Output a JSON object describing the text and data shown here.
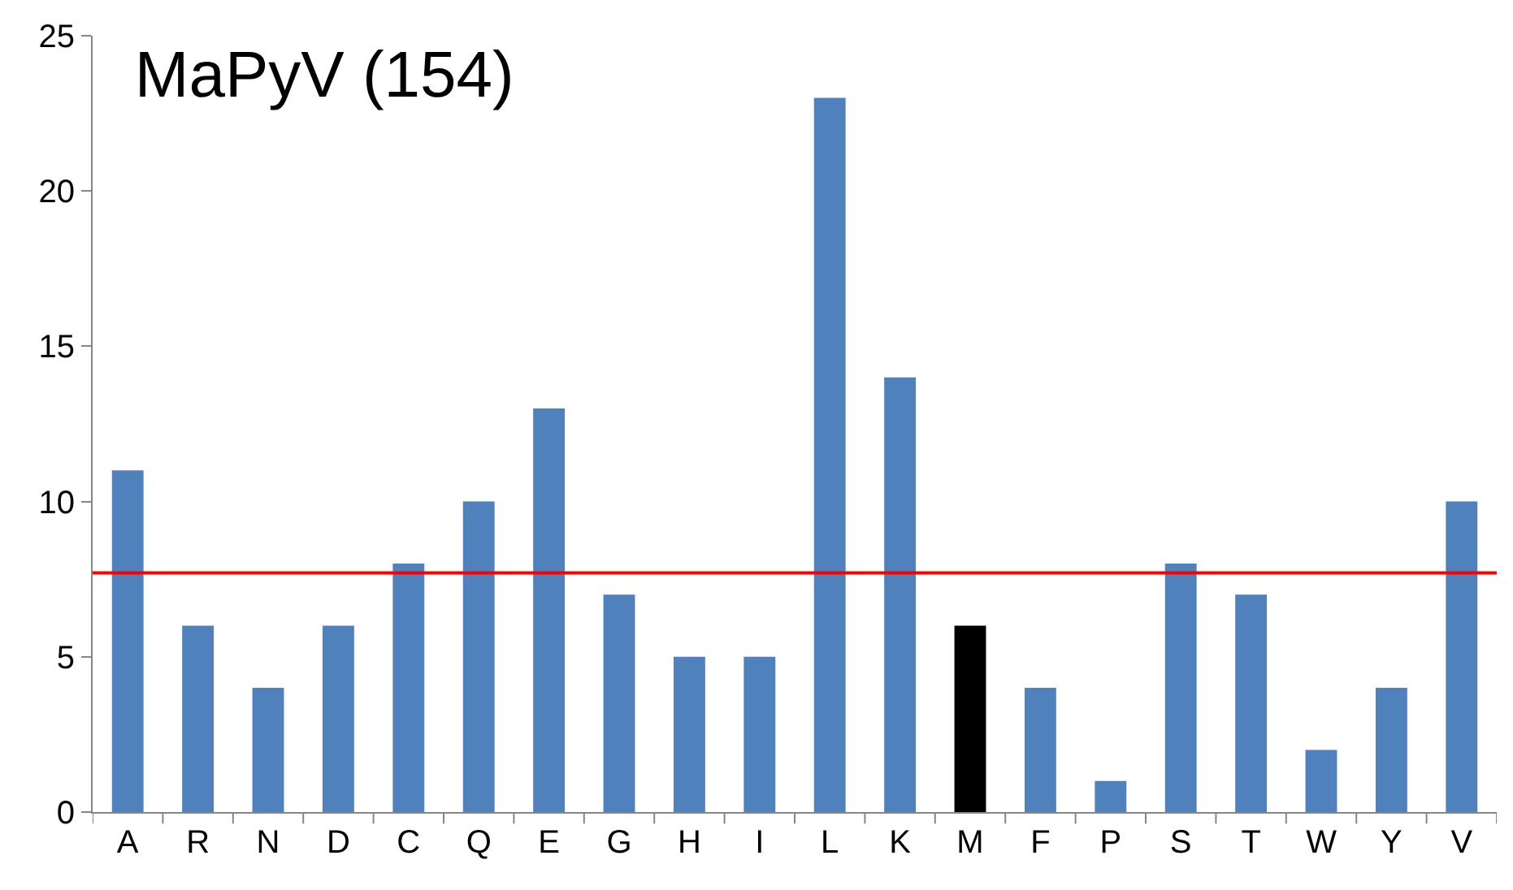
{
  "chart_data": {
    "type": "bar",
    "title": "MaPyV (154)",
    "categories": [
      "A",
      "R",
      "N",
      "D",
      "C",
      "Q",
      "E",
      "G",
      "H",
      "I",
      "L",
      "K",
      "M",
      "F",
      "P",
      "S",
      "T",
      "W",
      "Y",
      "V"
    ],
    "values": [
      11,
      6,
      4,
      6,
      8,
      10,
      13,
      7,
      5,
      5,
      23,
      14,
      6,
      4,
      1,
      8,
      7,
      2,
      4,
      10
    ],
    "colors": [
      "#4f81bd",
      "#4f81bd",
      "#4f81bd",
      "#4f81bd",
      "#4f81bd",
      "#4f81bd",
      "#4f81bd",
      "#4f81bd",
      "#4f81bd",
      "#4f81bd",
      "#4f81bd",
      "#4f81bd",
      "#000000",
      "#4f81bd",
      "#4f81bd",
      "#4f81bd",
      "#4f81bd",
      "#4f81bd",
      "#4f81bd",
      "#4f81bd"
    ],
    "ylim": [
      0,
      25
    ],
    "yticks": [
      0,
      5,
      10,
      15,
      20,
      25
    ],
    "ref_lines": [
      {
        "axis": "y",
        "value": 7.7,
        "color": "#ff0000"
      }
    ]
  }
}
